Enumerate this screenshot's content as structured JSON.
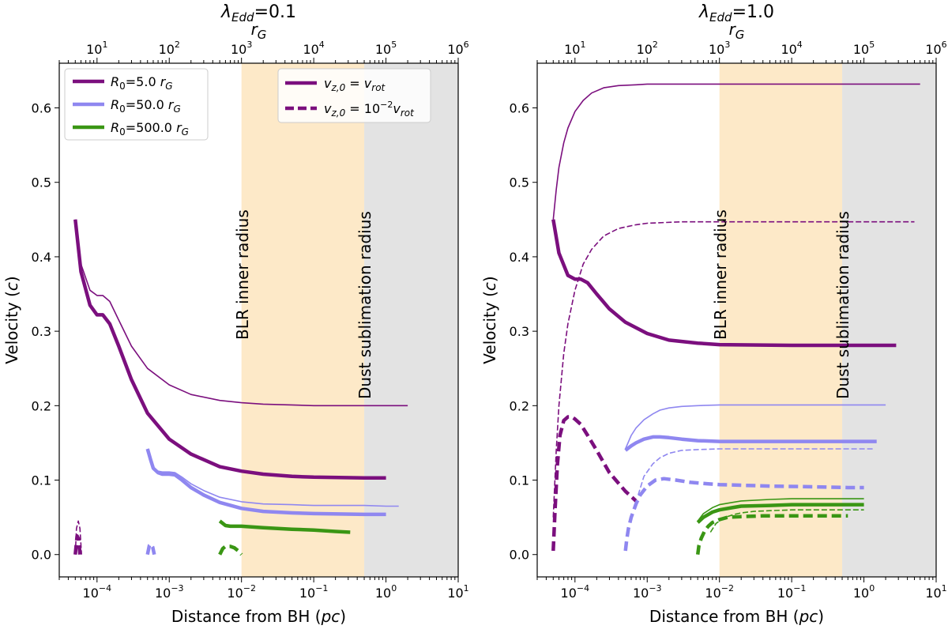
{
  "chart_data": [
    {
      "type": "line",
      "title": "λEdd=0.1",
      "top_axis_label": "rG",
      "xlabel": "Distance from BH (pc)",
      "ylabel": "Velocity (c)",
      "xscale": "log",
      "xlim": [
        3e-05,
        10
      ],
      "ylim": [
        -0.03,
        0.66
      ],
      "x_ticks": [
        "10^-4",
        "10^-3",
        "10^-2",
        "10^-1",
        "10^0",
        "10^1"
      ],
      "y_ticks": [
        "0.0",
        "0.1",
        "0.2",
        "0.3",
        "0.4",
        "0.5",
        "0.6"
      ],
      "top_ticks": [
        "10^1",
        "10^2",
        "10^3",
        "10^4",
        "10^5",
        "10^6"
      ],
      "regions": [
        {
          "name": "BLR",
          "x0": 0.01,
          "x1": 0.5,
          "color": "#fde9c8"
        },
        {
          "name": "Dust",
          "x0": 0.5,
          "x1": 10,
          "color": "#e3e3e3"
        }
      ],
      "annotations": [
        {
          "text": "BLR inner radius",
          "x": 0.01
        },
        {
          "text": "Dust sublimation radius",
          "x": 0.5
        }
      ],
      "legends": [
        {
          "entries": [
            {
              "label": "R0=5.0 rG",
              "color": "#7b0f7e"
            },
            {
              "label": "R0=50.0 rG",
              "color": "#8f87f0"
            },
            {
              "label": "R0=500.0 rG",
              "color": "#3a9614"
            }
          ]
        },
        {
          "entries": [
            {
              "label": "vz,0 = vrot",
              "color": "#7b0f7e",
              "dashed": false
            },
            {
              "label": "vz,0 = 10^-2 vrot",
              "color": "#7b0f7e",
              "dashed": true
            }
          ]
        }
      ],
      "series": [
        {
          "name": "R0=5.0 rG, vz0=vrot, thick",
          "color": "#7b0f7e",
          "width": 4.5,
          "dashed": false,
          "x": [
            5e-05,
            6e-05,
            8e-05,
            0.0001,
            0.00012,
            0.00015,
            0.0002,
            0.0003,
            0.0005,
            0.001,
            0.002,
            0.005,
            0.01,
            0.02,
            0.05,
            0.1,
            0.5,
            1.0
          ],
          "y": [
            0.45,
            0.38,
            0.335,
            0.322,
            0.322,
            0.31,
            0.28,
            0.235,
            0.19,
            0.155,
            0.135,
            0.118,
            0.112,
            0.108,
            0.105,
            0.104,
            0.103,
            0.103
          ]
        },
        {
          "name": "R0=5.0 rG, vz0=vrot, thin",
          "color": "#7b0f7e",
          "width": 1.6,
          "dashed": false,
          "x": [
            5e-05,
            6e-05,
            8e-05,
            0.0001,
            0.00012,
            0.00015,
            0.0002,
            0.0003,
            0.0005,
            0.001,
            0.002,
            0.005,
            0.01,
            0.02,
            0.05,
            0.1,
            0.5,
            2.0
          ],
          "y": [
            0.45,
            0.39,
            0.355,
            0.348,
            0.348,
            0.34,
            0.315,
            0.28,
            0.25,
            0.228,
            0.215,
            0.207,
            0.204,
            0.202,
            0.201,
            0.2,
            0.2,
            0.2
          ]
        },
        {
          "name": "R0=50.0 rG, vz0=vrot, thick",
          "color": "#8f87f0",
          "width": 4.5,
          "dashed": false,
          "x": [
            0.0005,
            0.00055,
            0.0006,
            0.0007,
            0.0008,
            0.001,
            0.0012,
            0.0015,
            0.002,
            0.003,
            0.005,
            0.01,
            0.02,
            0.05,
            0.1,
            0.5,
            1.0
          ],
          "y": [
            0.142,
            0.128,
            0.116,
            0.11,
            0.108,
            0.108,
            0.107,
            0.1,
            0.09,
            0.08,
            0.07,
            0.062,
            0.058,
            0.056,
            0.055,
            0.054,
            0.054
          ]
        },
        {
          "name": "R0=50.0 rG, vz0=vrot, thin",
          "color": "#8f87f0",
          "width": 1.6,
          "dashed": false,
          "x": [
            0.0005,
            0.00055,
            0.0006,
            0.0007,
            0.0008,
            0.001,
            0.0012,
            0.0015,
            0.002,
            0.003,
            0.005,
            0.01,
            0.02,
            0.05,
            0.1,
            0.5,
            1.0,
            1.5
          ],
          "y": [
            0.142,
            0.128,
            0.117,
            0.112,
            0.111,
            0.111,
            0.11,
            0.104,
            0.095,
            0.086,
            0.077,
            0.071,
            0.068,
            0.067,
            0.066,
            0.066,
            0.065,
            0.065
          ]
        },
        {
          "name": "R0=500.0 rG, vz0=vrot, thick",
          "color": "#3a9614",
          "width": 4.5,
          "dashed": false,
          "x": [
            0.005,
            0.006,
            0.007,
            0.01,
            0.02,
            0.05,
            0.1,
            0.2,
            0.32
          ],
          "y": [
            0.045,
            0.039,
            0.038,
            0.038,
            0.036,
            0.034,
            0.033,
            0.031,
            0.03
          ]
        },
        {
          "name": "R0=5.0 rG, vz0=0.01vrot, thick",
          "color": "#7b0f7e",
          "width": 4.5,
          "dashed": true,
          "x": [
            5e-05,
            5.3e-05,
            5.6e-05,
            5.8e-05
          ],
          "y": [
            0.0,
            0.025,
            0.02,
            0.0
          ]
        },
        {
          "name": "R0=5.0 rG, vz0=0.01vrot, thin",
          "color": "#7b0f7e",
          "width": 1.6,
          "dashed": true,
          "x": [
            5e-05,
            5.2e-05,
            5.5e-05,
            5.8e-05,
            6.1e-05
          ],
          "y": [
            0.0,
            0.035,
            0.045,
            0.035,
            0.0
          ]
        },
        {
          "name": "R0=50.0 rG, vz0=0.01vrot, thick",
          "color": "#8f87f0",
          "width": 4.5,
          "dashed": true,
          "x": [
            0.0005,
            0.00053,
            0.00056,
            0.00059,
            0.00062
          ],
          "y": [
            0.0,
            0.012,
            0.014,
            0.01,
            0.0
          ]
        },
        {
          "name": "R0=500.0 rG, vz0=0.01vrot, thick",
          "color": "#3a9614",
          "width": 4.5,
          "dashed": true,
          "x": [
            0.005,
            0.0055,
            0.006,
            0.007,
            0.008,
            0.009,
            0.01
          ],
          "y": [
            0.0,
            0.008,
            0.011,
            0.011,
            0.009,
            0.005,
            0.0
          ]
        }
      ]
    },
    {
      "type": "line",
      "title": "λEdd=1.0",
      "top_axis_label": "rG",
      "xlabel": "Distance from BH (pc)",
      "ylabel": "Velocity (c)",
      "xscale": "log",
      "xlim": [
        3e-05,
        10
      ],
      "ylim": [
        -0.03,
        0.66
      ],
      "x_ticks": [
        "10^-4",
        "10^-3",
        "10^-2",
        "10^-1",
        "10^0",
        "10^1"
      ],
      "y_ticks": [
        "0.0",
        "0.1",
        "0.2",
        "0.3",
        "0.4",
        "0.5",
        "0.6"
      ],
      "top_ticks": [
        "10^1",
        "10^2",
        "10^3",
        "10^4",
        "10^5",
        "10^6"
      ],
      "regions": [
        {
          "name": "BLR",
          "x0": 0.01,
          "x1": 0.5,
          "color": "#fde9c8"
        },
        {
          "name": "Dust",
          "x0": 0.5,
          "x1": 10,
          "color": "#e3e3e3"
        }
      ],
      "annotations": [
        {
          "text": "BLR inner radius",
          "x": 0.01
        },
        {
          "text": "Dust sublimation radius",
          "x": 0.5
        }
      ],
      "legends": [],
      "series": [
        {
          "name": "R0=5.0 rG, vz0=vrot, thin",
          "color": "#7b0f7e",
          "width": 1.6,
          "dashed": false,
          "x": [
            5e-05,
            5.5e-05,
            6e-05,
            7e-05,
            8e-05,
            0.0001,
            0.00013,
            0.00017,
            0.00025,
            0.0004,
            0.0007,
            0.001,
            0.003,
            0.01,
            0.1,
            1.0,
            6.0
          ],
          "y": [
            0.45,
            0.49,
            0.52,
            0.553,
            0.573,
            0.595,
            0.61,
            0.62,
            0.627,
            0.63,
            0.631,
            0.632,
            0.632,
            0.632,
            0.632,
            0.632,
            0.632
          ]
        },
        {
          "name": "R0=5.0 rG, vz0=vrot, thick",
          "color": "#7b0f7e",
          "width": 4.5,
          "dashed": false,
          "x": [
            5e-05,
            6e-05,
            8e-05,
            0.0001,
            0.00012,
            0.00015,
            0.0002,
            0.0003,
            0.0005,
            0.001,
            0.002,
            0.005,
            0.01,
            0.1,
            1.0,
            2.8
          ],
          "y": [
            0.45,
            0.405,
            0.375,
            0.37,
            0.37,
            0.365,
            0.35,
            0.33,
            0.312,
            0.297,
            0.288,
            0.284,
            0.282,
            0.281,
            0.281,
            0.281
          ]
        },
        {
          "name": "R0=5.0 rG, vz0=0.01vrot, thin",
          "color": "#7b0f7e",
          "width": 1.6,
          "dashed": true,
          "x": [
            5e-05,
            5.5e-05,
            6e-05,
            7e-05,
            8e-05,
            0.0001,
            0.00013,
            0.00017,
            0.00025,
            0.0004,
            0.0007,
            0.001,
            0.003,
            0.01,
            0.1,
            1.0,
            5.0
          ],
          "y": [
            0.05,
            0.14,
            0.2,
            0.27,
            0.31,
            0.355,
            0.39,
            0.41,
            0.428,
            0.438,
            0.443,
            0.445,
            0.447,
            0.447,
            0.447,
            0.447,
            0.447
          ]
        },
        {
          "name": "R0=5.0 rG, vz0=0.01vrot, thick",
          "color": "#7b0f7e",
          "width": 4.5,
          "dashed": true,
          "x": [
            5e-05,
            5.3e-05,
            5.7e-05,
            6.2e-05,
            7e-05,
            8e-05,
            9e-05,
            0.0001,
            0.00012,
            0.00015,
            0.0002,
            0.0003,
            0.0005,
            0.0007
          ],
          "y": [
            0.005,
            0.06,
            0.12,
            0.16,
            0.18,
            0.185,
            0.185,
            0.182,
            0.175,
            0.16,
            0.14,
            0.11,
            0.085,
            0.072
          ]
        },
        {
          "name": "R0=50.0 rG, vz0=vrot, thin",
          "color": "#8f87f0",
          "width": 1.6,
          "dashed": false,
          "x": [
            0.0005,
            0.0006,
            0.0007,
            0.0009,
            0.0012,
            0.0015,
            0.002,
            0.003,
            0.005,
            0.01,
            0.1,
            1.0,
            2.0
          ],
          "y": [
            0.142,
            0.16,
            0.17,
            0.181,
            0.189,
            0.194,
            0.197,
            0.199,
            0.2,
            0.201,
            0.201,
            0.201,
            0.201
          ]
        },
        {
          "name": "R0=50.0 rG, vz0=vrot, thick",
          "color": "#8f87f0",
          "width": 4.5,
          "dashed": false,
          "x": [
            0.0005,
            0.0006,
            0.0007,
            0.0009,
            0.0012,
            0.0015,
            0.002,
            0.003,
            0.005,
            0.01,
            0.1,
            1.0,
            1.5
          ],
          "y": [
            0.14,
            0.146,
            0.15,
            0.155,
            0.158,
            0.158,
            0.157,
            0.155,
            0.153,
            0.152,
            0.152,
            0.152,
            0.152
          ]
        },
        {
          "name": "R0=50.0 rG, vz0=0.01vrot, thin",
          "color": "#8f87f0",
          "width": 1.6,
          "dashed": true,
          "x": [
            0.00075,
            0.0009,
            0.0012,
            0.0015,
            0.002,
            0.003,
            0.005,
            0.01,
            0.1,
            1.0,
            1.4
          ],
          "y": [
            0.08,
            0.105,
            0.122,
            0.13,
            0.136,
            0.14,
            0.141,
            0.142,
            0.142,
            0.142,
            0.142
          ]
        },
        {
          "name": "R0=50.0 rG, vz0=0.01vrot, thick",
          "color": "#8f87f0",
          "width": 4.5,
          "dashed": true,
          "x": [
            0.0005,
            0.00052,
            0.00055,
            0.0006,
            0.0007,
            0.0008,
            0.001,
            0.0013,
            0.0017,
            0.0025,
            0.004,
            0.007,
            0.01,
            0.05,
            0.2,
            0.6,
            1.0
          ],
          "y": [
            0.005,
            0.02,
            0.035,
            0.05,
            0.068,
            0.08,
            0.092,
            0.1,
            0.102,
            0.1,
            0.097,
            0.095,
            0.094,
            0.092,
            0.091,
            0.09,
            0.09
          ]
        },
        {
          "name": "R0=500.0 rG, vz0=vrot, thin",
          "color": "#3a9614",
          "width": 1.6,
          "dashed": false,
          "x": [
            0.005,
            0.006,
            0.008,
            0.01,
            0.015,
            0.02,
            0.05,
            0.1,
            0.3,
            0.6,
            1.0
          ],
          "y": [
            0.045,
            0.055,
            0.063,
            0.067,
            0.07,
            0.072,
            0.074,
            0.075,
            0.075,
            0.075,
            0.075
          ]
        },
        {
          "name": "R0=500.0 rG, vz0=vrot, thick",
          "color": "#3a9614",
          "width": 4.5,
          "dashed": false,
          "x": [
            0.005,
            0.006,
            0.008,
            0.01,
            0.015,
            0.02,
            0.05,
            0.1,
            0.3,
            0.6,
            1.0
          ],
          "y": [
            0.043,
            0.05,
            0.057,
            0.06,
            0.063,
            0.065,
            0.066,
            0.067,
            0.067,
            0.067,
            0.067
          ]
        },
        {
          "name": "R0=500.0 rG, vz0=0.01vrot, thin",
          "color": "#3a9614",
          "width": 1.6,
          "dashed": true,
          "x": [
            0.0075,
            0.009,
            0.012,
            0.016,
            0.02,
            0.03,
            0.05,
            0.1,
            0.3,
            0.6,
            1.0
          ],
          "y": [
            0.03,
            0.042,
            0.05,
            0.054,
            0.056,
            0.058,
            0.059,
            0.06,
            0.06,
            0.06,
            0.06
          ]
        },
        {
          "name": "R0=500.0 rG, vz0=0.01vrot, thick",
          "color": "#3a9614",
          "width": 4.5,
          "dashed": true,
          "x": [
            0.005,
            0.0052,
            0.0056,
            0.0062,
            0.007,
            0.008,
            0.01,
            0.013,
            0.02,
            0.04,
            0.1,
            0.3,
            0.6
          ],
          "y": [
            0.0,
            0.012,
            0.022,
            0.031,
            0.038,
            0.043,
            0.047,
            0.05,
            0.051,
            0.052,
            0.052,
            0.052,
            0.052
          ]
        }
      ]
    }
  ]
}
